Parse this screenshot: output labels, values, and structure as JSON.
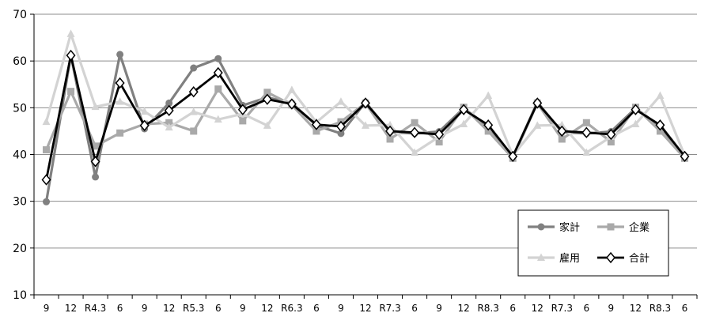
{
  "chart_data": {
    "type": "line",
    "categories": [
      "9",
      "12",
      "R4.3",
      "6",
      "9",
      "12",
      "R5.3",
      "6",
      "9",
      "12",
      "R6.3",
      "6",
      "9",
      "12",
      "R7.3",
      "6",
      "9",
      "12",
      "R8.3",
      "6",
      "12",
      "R7.3",
      "6",
      "9",
      "12",
      "R8.3",
      "6"
    ],
    "ylim": [
      10,
      70
    ],
    "yticks": [
      10,
      20,
      30,
      40,
      50,
      60,
      70
    ],
    "grid": true,
    "legend_position": "bottom-right",
    "series": [
      {
        "name": "家計",
        "color": "#808080",
        "marker": "circle",
        "values": [
          29.9,
          61.2,
          35.2,
          61.4,
          45.5,
          51.0,
          58.5,
          60.5,
          50.5,
          52.2,
          51.0,
          46.2,
          44.5,
          51.2,
          44.8,
          44.5,
          44.9,
          49.9,
          46.0,
          39.5,
          51.2,
          44.8,
          44.5,
          44.9,
          49.9,
          46.0,
          39.5
        ]
      },
      {
        "name": "企業",
        "color": "#a9a9a9",
        "marker": "square",
        "values": [
          41.0,
          53.5,
          41.8,
          44.6,
          46.5,
          46.8,
          45.0,
          54.0,
          47.2,
          53.3,
          50.6,
          45.0,
          47.0,
          51.0,
          43.3,
          46.8,
          42.7,
          50.1,
          45.0,
          39.2,
          51.0,
          43.3,
          46.8,
          42.7,
          50.1,
          45.0,
          39.2
        ]
      },
      {
        "name": "雇用",
        "color": "#d3d3d3",
        "marker": "triangle",
        "values": [
          47.0,
          65.8,
          50.2,
          51.3,
          49.2,
          45.8,
          49.1,
          47.5,
          48.7,
          46.2,
          53.8,
          46.9,
          51.3,
          46.2,
          46.3,
          40.4,
          43.8,
          46.5,
          52.6,
          39.8,
          46.2,
          46.3,
          40.4,
          43.8,
          46.5,
          52.6,
          39.8
        ]
      },
      {
        "name": "合計",
        "color": "#000000",
        "marker": "diamond",
        "values": [
          34.6,
          61.2,
          38.5,
          55.3,
          46.2,
          49.4,
          53.4,
          57.5,
          49.6,
          51.8,
          50.8,
          46.4,
          46.0,
          51.0,
          45.0,
          44.7,
          44.3,
          49.6,
          46.3,
          39.6,
          51.0,
          45.0,
          44.7,
          44.3,
          49.6,
          46.3,
          39.6
        ]
      }
    ]
  }
}
